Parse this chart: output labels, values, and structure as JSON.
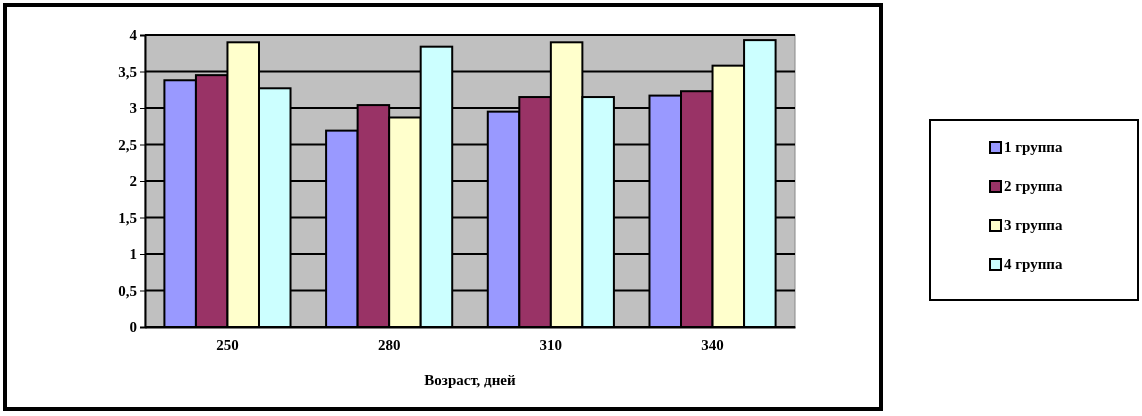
{
  "chart_data": {
    "type": "bar",
    "xlabel": "Возраст, дней",
    "categories": [
      "250",
      "280",
      "310",
      "340"
    ],
    "series": [
      {
        "name": "1 группа",
        "color": "#9999ff",
        "values": [
          3.38,
          2.69,
          2.95,
          3.17
        ]
      },
      {
        "name": "2 группа",
        "color": "#993366",
        "values": [
          3.45,
          3.04,
          3.15,
          3.23
        ]
      },
      {
        "name": "3 группа",
        "color": "#ffffcc",
        "values": [
          3.9,
          2.87,
          3.9,
          3.58
        ]
      },
      {
        "name": "4 группа",
        "color": "#ccffff",
        "values": [
          3.27,
          3.84,
          3.15,
          3.93
        ]
      }
    ],
    "ylim": [
      0,
      4
    ],
    "yticks": [
      0,
      {
        "value": 0.5,
        "label": "0,5"
      },
      1,
      {
        "value": 1.5,
        "label": "1,5"
      },
      2,
      {
        "value": 2.5,
        "label": "2,5"
      },
      3,
      {
        "value": 3.5,
        "label": "3,5"
      },
      4
    ],
    "grid": "y",
    "legend": "right"
  }
}
